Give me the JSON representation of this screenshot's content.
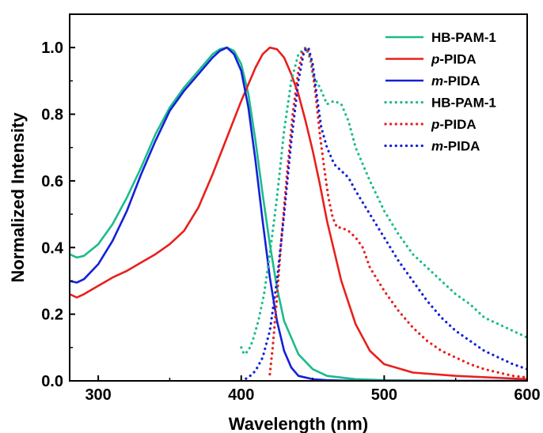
{
  "chart_data": {
    "type": "line",
    "xlabel": "Wavelength (nm)",
    "ylabel": "Normalized Intensity",
    "xlim": [
      280,
      600
    ],
    "ylim": [
      0.0,
      1.1
    ],
    "xticks": [
      "300",
      "400",
      "500",
      "600"
    ],
    "yticks": [
      "0.0",
      "0.2",
      "0.4",
      "0.6",
      "0.8",
      "1.0"
    ],
    "xtick_values": [
      300,
      400,
      500,
      600
    ],
    "ytick_values": [
      0.0,
      0.2,
      0.4,
      0.6,
      0.8,
      1.0
    ],
    "grid": false,
    "legend_position": "top-right",
    "series": [
      {
        "name": "HB-PAM-1",
        "name_prefix": "",
        "name_suffix": "HB-PAM-1",
        "color": "#1abc8c",
        "style": "solid",
        "x": [
          280,
          285,
          290,
          300,
          310,
          320,
          330,
          340,
          350,
          360,
          370,
          380,
          385,
          390,
          395,
          400,
          405,
          410,
          415,
          420,
          425,
          430,
          440,
          450,
          460,
          480,
          500,
          550,
          600
        ],
        "y": [
          0.38,
          0.37,
          0.375,
          0.41,
          0.47,
          0.55,
          0.64,
          0.74,
          0.82,
          0.88,
          0.93,
          0.98,
          0.995,
          1.0,
          0.99,
          0.95,
          0.86,
          0.72,
          0.56,
          0.41,
          0.28,
          0.18,
          0.08,
          0.035,
          0.015,
          0.005,
          0.002,
          0.0,
          0.0
        ]
      },
      {
        "name": "p-PIDA",
        "name_prefix": "p",
        "name_suffix": "-PIDA",
        "color": "#e8201c",
        "style": "solid",
        "x": [
          280,
          285,
          290,
          300,
          310,
          320,
          330,
          340,
          350,
          360,
          370,
          380,
          390,
          400,
          405,
          410,
          415,
          420,
          425,
          430,
          435,
          440,
          445,
          450,
          455,
          460,
          470,
          480,
          490,
          500,
          520,
          550,
          600
        ],
        "y": [
          0.26,
          0.25,
          0.26,
          0.285,
          0.31,
          0.33,
          0.355,
          0.38,
          0.41,
          0.45,
          0.52,
          0.62,
          0.73,
          0.84,
          0.89,
          0.94,
          0.98,
          1.0,
          0.995,
          0.97,
          0.92,
          0.86,
          0.78,
          0.69,
          0.59,
          0.48,
          0.3,
          0.17,
          0.09,
          0.05,
          0.025,
          0.015,
          0.005
        ]
      },
      {
        "name": "m-PIDA",
        "name_prefix": "m",
        "name_suffix": "-PIDA",
        "color": "#1420d8",
        "style": "solid",
        "x": [
          280,
          285,
          290,
          300,
          310,
          320,
          330,
          340,
          350,
          360,
          370,
          380,
          385,
          390,
          395,
          400,
          405,
          410,
          415,
          420,
          425,
          430,
          435,
          440,
          450,
          460,
          480,
          500,
          600
        ],
        "y": [
          0.3,
          0.295,
          0.305,
          0.35,
          0.42,
          0.51,
          0.62,
          0.72,
          0.81,
          0.87,
          0.92,
          0.97,
          0.99,
          1.0,
          0.98,
          0.93,
          0.82,
          0.66,
          0.48,
          0.31,
          0.18,
          0.09,
          0.04,
          0.015,
          0.005,
          0.002,
          0.0,
          0.0,
          0.0
        ]
      },
      {
        "name": "HB-PAM-1",
        "name_prefix": "",
        "name_suffix": "HB-PAM-1",
        "color": "#1abc8c",
        "style": "dotted",
        "x": [
          400,
          402,
          405,
          408,
          412,
          416,
          420,
          425,
          430,
          435,
          440,
          445,
          448,
          450,
          455,
          460,
          465,
          470,
          475,
          480,
          490,
          500,
          510,
          520,
          530,
          540,
          550,
          560,
          570,
          580,
          590,
          600
        ],
        "y": [
          0.1,
          0.08,
          0.09,
          0.12,
          0.18,
          0.26,
          0.38,
          0.55,
          0.75,
          0.9,
          0.98,
          1.0,
          0.97,
          0.92,
          0.88,
          0.83,
          0.84,
          0.83,
          0.78,
          0.7,
          0.6,
          0.51,
          0.44,
          0.38,
          0.34,
          0.3,
          0.26,
          0.23,
          0.19,
          0.17,
          0.15,
          0.13
        ]
      },
      {
        "name": "p-PIDA",
        "name_prefix": "p",
        "name_suffix": "-PIDA",
        "color": "#e8201c",
        "style": "dotted",
        "x": [
          420,
          422,
          425,
          428,
          432,
          436,
          440,
          443,
          446,
          449,
          452,
          455,
          458,
          461,
          464,
          467,
          470,
          475,
          480,
          485,
          490,
          500,
          510,
          520,
          530,
          540,
          550,
          560,
          570,
          580,
          590,
          600
        ],
        "y": [
          0.02,
          0.1,
          0.25,
          0.42,
          0.62,
          0.8,
          0.93,
          0.99,
          1.0,
          0.96,
          0.86,
          0.74,
          0.64,
          0.55,
          0.49,
          0.46,
          0.46,
          0.45,
          0.43,
          0.4,
          0.34,
          0.27,
          0.21,
          0.16,
          0.12,
          0.09,
          0.07,
          0.05,
          0.035,
          0.025,
          0.015,
          0.01
        ]
      },
      {
        "name": "m-PIDA",
        "name_prefix": "m",
        "name_suffix": "-PIDA",
        "color": "#1420d8",
        "style": "dotted",
        "x": [
          400,
          405,
          410,
          415,
          420,
          425,
          430,
          435,
          440,
          444,
          447,
          450,
          453,
          456,
          460,
          465,
          470,
          475,
          480,
          490,
          500,
          510,
          520,
          530,
          540,
          550,
          560,
          570,
          580,
          590,
          600
        ],
        "y": [
          0.0,
          0.01,
          0.03,
          0.07,
          0.15,
          0.3,
          0.5,
          0.72,
          0.9,
          0.99,
          1.0,
          0.95,
          0.85,
          0.76,
          0.7,
          0.65,
          0.63,
          0.61,
          0.57,
          0.5,
          0.43,
          0.36,
          0.3,
          0.24,
          0.19,
          0.15,
          0.12,
          0.09,
          0.07,
          0.05,
          0.035
        ]
      }
    ]
  }
}
